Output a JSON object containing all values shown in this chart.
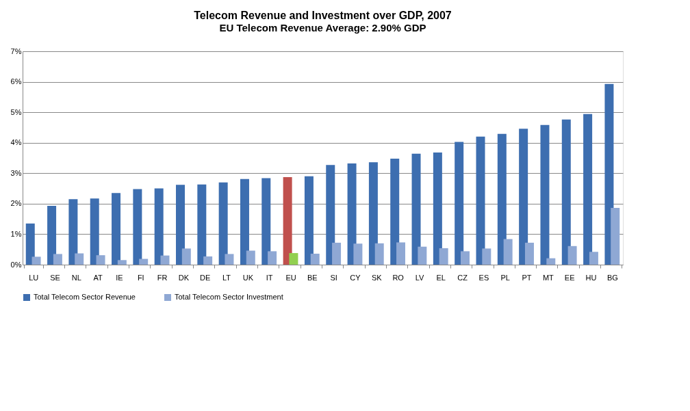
{
  "chart_data": {
    "type": "bar",
    "title": "Telecom Revenue and Investment over GDP, 2007",
    "subtitle": "EU Telecom Revenue Average: 2.90% GDP",
    "categories": [
      "LU",
      "SE",
      "NL",
      "AT",
      "IE",
      "FI",
      "FR",
      "DK",
      "DE",
      "LT",
      "UK",
      "IT",
      "EU",
      "BE",
      "SI",
      "CY",
      "SK",
      "RO",
      "LV",
      "EL",
      "CZ",
      "ES",
      "PL",
      "PT",
      "MT",
      "EE",
      "HU",
      "BG"
    ],
    "series": [
      {
        "name": "Total Telecom Sector Revenue",
        "color": "#3d6eb0",
        "colors": [
          "#3d6eb0",
          "#3d6eb0",
          "#3d6eb0",
          "#3d6eb0",
          "#3d6eb0",
          "#3d6eb0",
          "#3d6eb0",
          "#3d6eb0",
          "#3d6eb0",
          "#3d6eb0",
          "#3d6eb0",
          "#3d6eb0",
          "#c0504d",
          "#3d6eb0",
          "#3d6eb0",
          "#3d6eb0",
          "#3d6eb0",
          "#3d6eb0",
          "#3d6eb0",
          "#3d6eb0",
          "#3d6eb0",
          "#3d6eb0",
          "#3d6eb0",
          "#3d6eb0",
          "#3d6eb0",
          "#3d6eb0",
          "#3d6eb0",
          "#3d6eb0"
        ],
        "values": [
          1.35,
          1.93,
          2.15,
          2.17,
          2.35,
          2.48,
          2.5,
          2.62,
          2.63,
          2.7,
          2.81,
          2.84,
          2.87,
          2.9,
          3.27,
          3.32,
          3.36,
          3.48,
          3.64,
          3.68,
          4.03,
          4.2,
          4.29,
          4.46,
          4.58,
          4.76,
          4.94,
          5.93
        ]
      },
      {
        "name": "Total Telecom Sector Investment",
        "color": "#8fa8d4",
        "colors": [
          "#8fa8d4",
          "#8fa8d4",
          "#8fa8d4",
          "#8fa8d4",
          "#8fa8d4",
          "#8fa8d4",
          "#8fa8d4",
          "#8fa8d4",
          "#8fa8d4",
          "#8fa8d4",
          "#8fa8d4",
          "#8fa8d4",
          "#92d050",
          "#8fa8d4",
          "#8fa8d4",
          "#8fa8d4",
          "#8fa8d4",
          "#8fa8d4",
          "#8fa8d4",
          "#8fa8d4",
          "#8fa8d4",
          "#8fa8d4",
          "#8fa8d4",
          "#8fa8d4",
          "#8fa8d4",
          "#8fa8d4",
          "#8fa8d4",
          "#8fa8d4"
        ],
        "values": [
          0.26,
          0.35,
          0.37,
          0.31,
          0.15,
          0.19,
          0.3,
          0.53,
          0.27,
          0.35,
          0.46,
          0.44,
          0.38,
          0.36,
          0.72,
          0.69,
          0.7,
          0.73,
          0.59,
          0.54,
          0.44,
          0.53,
          0.84,
          0.72,
          0.21,
          0.61,
          0.42,
          1.86
        ]
      }
    ],
    "ylim": [
      0,
      7
    ],
    "yticks": [
      {
        "value": 0,
        "label": "0%"
      },
      {
        "value": 1,
        "label": "1%"
      },
      {
        "value": 2,
        "label": "2%"
      },
      {
        "value": 3,
        "label": "3%"
      },
      {
        "value": 4,
        "label": "4%"
      },
      {
        "value": 5,
        "label": "5%"
      },
      {
        "value": 6,
        "label": "6%"
      },
      {
        "value": 7,
        "label": "7%"
      }
    ],
    "grid": "y",
    "legend": "bottom"
  }
}
